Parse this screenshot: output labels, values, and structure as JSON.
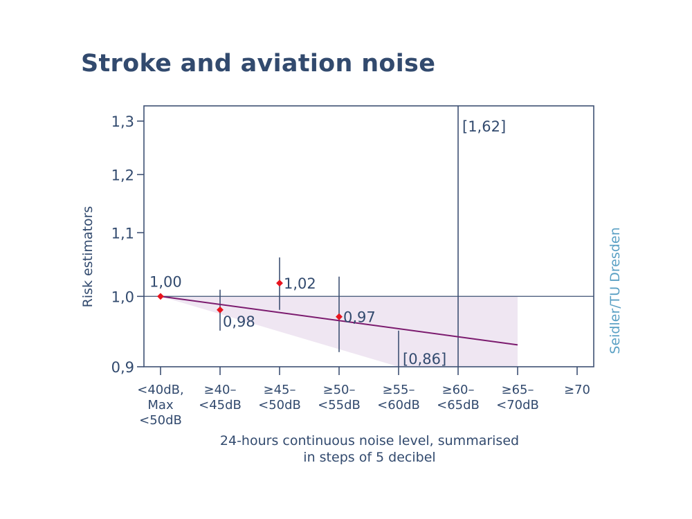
{
  "chart_data": {
    "type": "scatter",
    "title": "Stroke and aviation noise",
    "xlabel_lines": [
      "24-hours continuous noise level, summarised",
      "in steps of 5 decibel"
    ],
    "ylabel": "Risk estimators",
    "y_scale": "log",
    "ylim": [
      0.9,
      1.3
    ],
    "yticks": [
      {
        "value": 0.9,
        "label": "0,9"
      },
      {
        "value": 1.0,
        "label": "1,0"
      },
      {
        "value": 1.1,
        "label": "1,1"
      },
      {
        "value": 1.2,
        "label": "1,2"
      },
      {
        "value": 1.3,
        "label": "1,3"
      }
    ],
    "categories": [
      {
        "lines": [
          "<40dB,",
          "Max",
          "<50dB"
        ]
      },
      {
        "lines": [
          "≥40–",
          "<45dB"
        ]
      },
      {
        "lines": [
          "≥45–",
          "<50dB"
        ]
      },
      {
        "lines": [
          "≥50–",
          "<55dB"
        ]
      },
      {
        "lines": [
          "≥55–",
          "<60dB"
        ]
      },
      {
        "lines": [
          "≥60–",
          "<65dB"
        ]
      },
      {
        "lines": [
          "≥65–",
          "<70dB"
        ]
      },
      {
        "lines": [
          "≥70"
        ]
      }
    ],
    "reference_line": 1.0,
    "points": [
      {
        "category_index": 0,
        "value": 1.0,
        "label": "1,00"
      },
      {
        "category_index": 1,
        "value": 0.98,
        "label": "0,98"
      },
      {
        "category_index": 2,
        "value": 1.02,
        "label": "1,02"
      },
      {
        "category_index": 3,
        "value": 0.97,
        "label": "0,97"
      }
    ],
    "error_bars": [
      {
        "category_index": 1,
        "low": 0.95,
        "high": 1.01
      },
      {
        "category_index": 2,
        "low": 0.98,
        "high": 1.06
      },
      {
        "category_index": 3,
        "low": 0.92,
        "high": 1.03
      },
      {
        "category_index": 4,
        "low": 0.86,
        "high": 0.95,
        "annotation": "[0,86]"
      },
      {
        "category_index": 5,
        "low": 0.9,
        "high": 1.62,
        "annotation": "[1,62]"
      }
    ],
    "trend_line": {
      "from": {
        "category_index": 0,
        "value": 1.0
      },
      "to": {
        "category_index": 6,
        "value": 0.93
      }
    },
    "confidence_band": {
      "upper": [
        {
          "category_index": 0,
          "value": 1.0
        },
        {
          "category_index": 6,
          "value": 1.0
        }
      ],
      "lower": [
        {
          "category_index": 0,
          "value": 1.0
        },
        {
          "category_index": 4,
          "value": 0.9
        },
        {
          "category_index": 6,
          "value": 0.9
        }
      ]
    },
    "credit": "Seidler/TU Dresden",
    "colors": {
      "axis": "#3d5073",
      "text": "#324a6e",
      "point": "#e8141e",
      "trend": "#7b1a6e",
      "band": "#efe6f2",
      "credit": "#5aa0c4"
    }
  }
}
